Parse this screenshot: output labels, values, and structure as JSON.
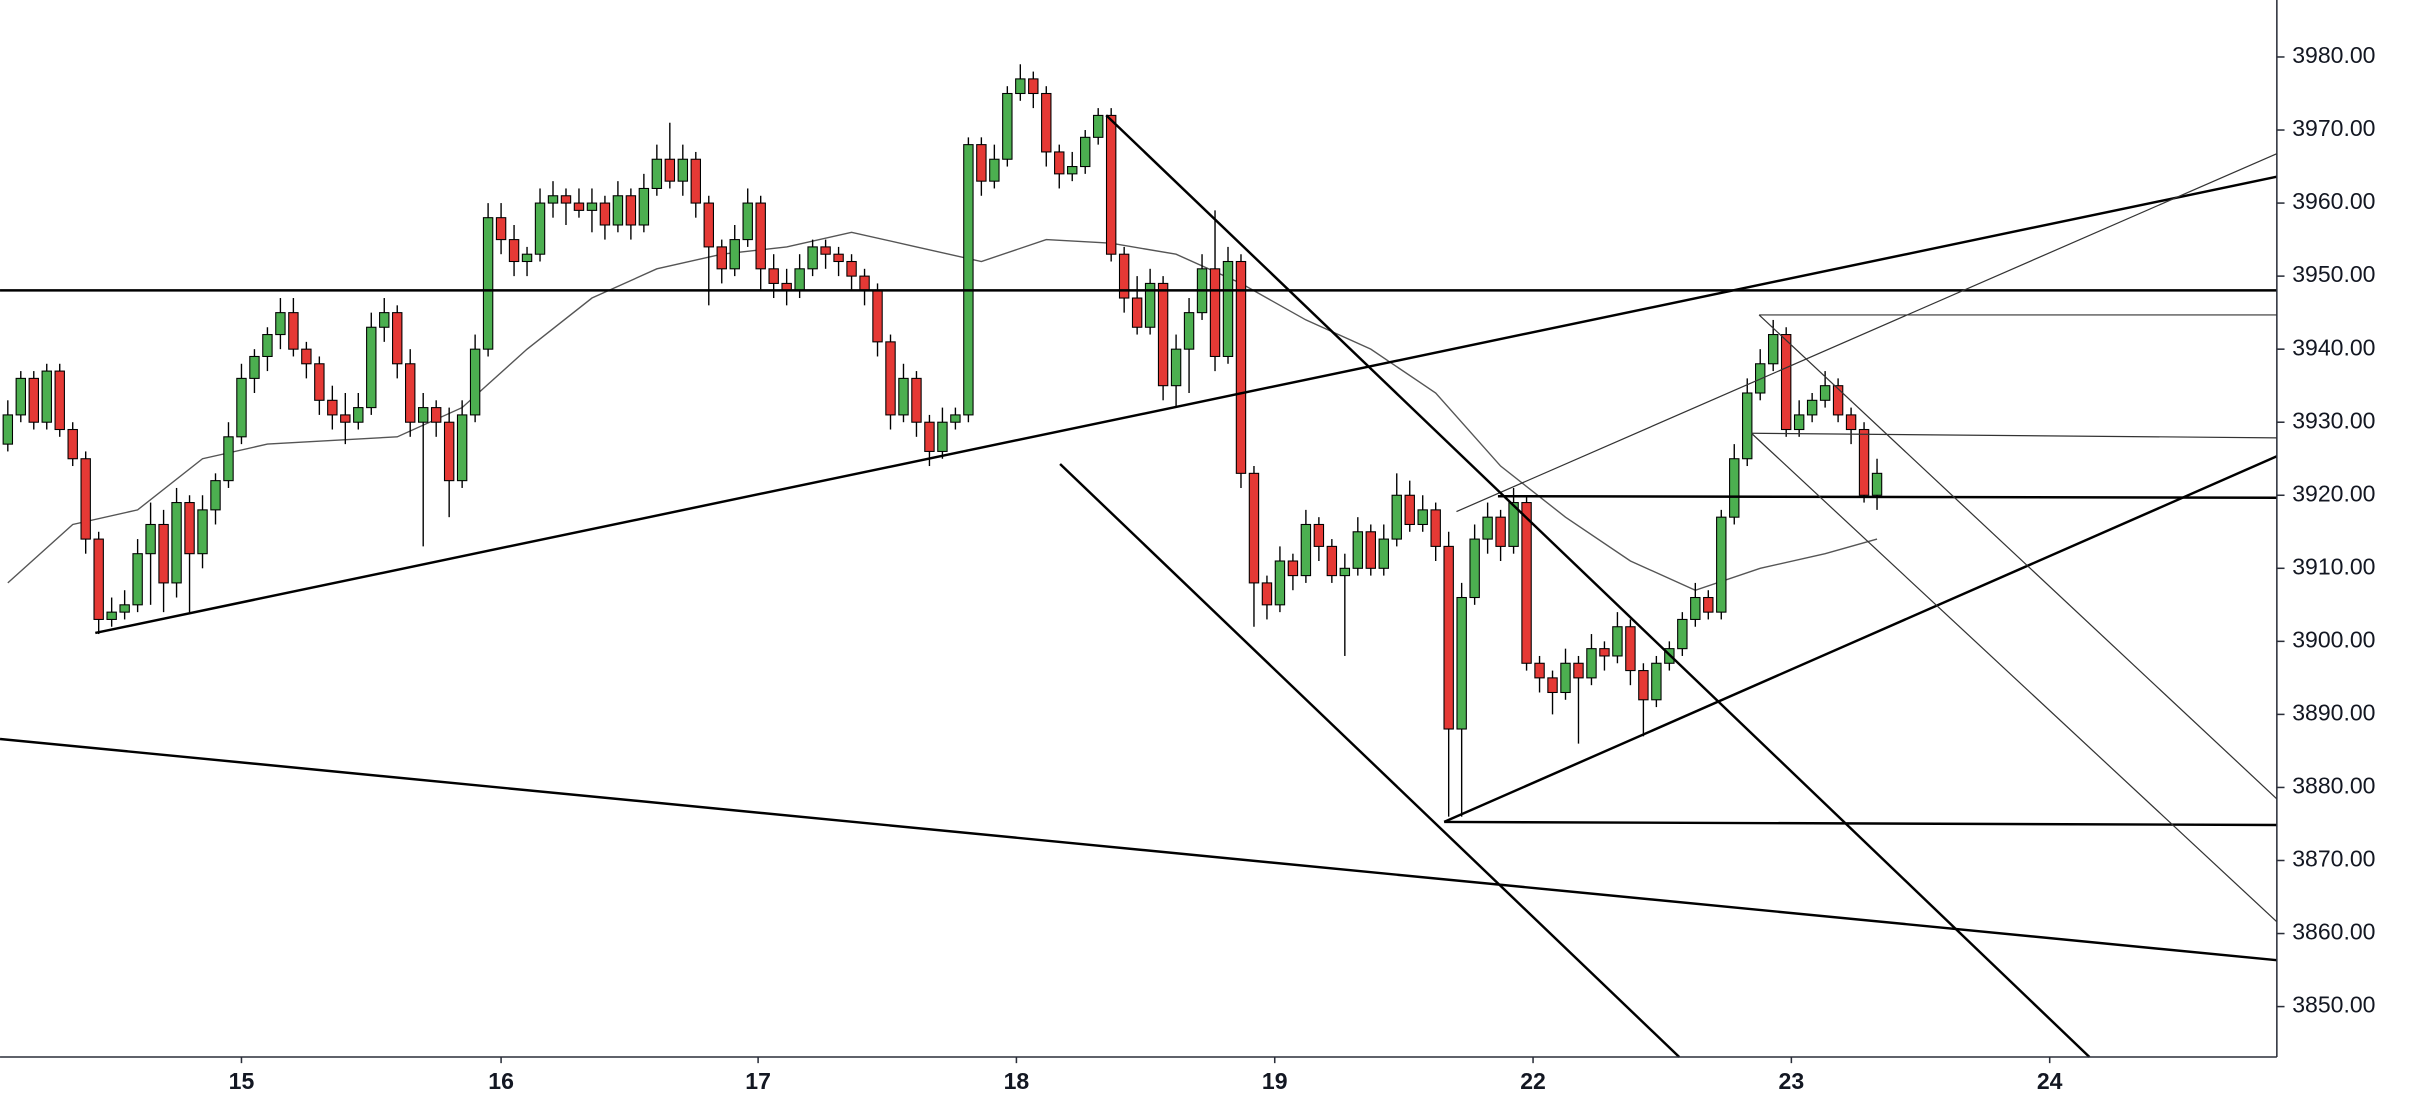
{
  "chart_data": {
    "type": "candlestick",
    "xlim": [
      -0.6,
      174.8
    ],
    "xticks": [
      {
        "value": 18,
        "label": "15"
      },
      {
        "value": 38,
        "label": "16"
      },
      {
        "value": 57.8,
        "label": "17"
      },
      {
        "value": 77.7,
        "label": "18"
      },
      {
        "value": 97.6,
        "label": "19"
      },
      {
        "value": 117.5,
        "label": "22"
      },
      {
        "value": 137.4,
        "label": "23"
      },
      {
        "value": 157.3,
        "label": "24"
      }
    ],
    "ylim": [
      3843.1,
      3987.8
    ],
    "yticks": [
      {
        "value": 3850,
        "label": "3850.00"
      },
      {
        "value": 3860,
        "label": "3860.00"
      },
      {
        "value": 3870,
        "label": "3870.00"
      },
      {
        "value": 3880,
        "label": "3880.00"
      },
      {
        "value": 3890,
        "label": "3890.00"
      },
      {
        "value": 3900,
        "label": "3900.00"
      },
      {
        "value": 3910,
        "label": "3910.00"
      },
      {
        "value": 3920,
        "label": "3920.00"
      },
      {
        "value": 3930,
        "label": "3930.00"
      },
      {
        "value": 3940,
        "label": "3940.00"
      },
      {
        "value": 3950,
        "label": "3950.00"
      },
      {
        "value": 3960,
        "label": "3960.00"
      },
      {
        "value": 3970,
        "label": "3970.00"
      },
      {
        "value": 3980,
        "label": "3980.00"
      }
    ],
    "grid": false,
    "up_color": "#4caf50",
    "down_color": "#e53935",
    "open": [
      3927,
      3931,
      3936,
      3930,
      3937,
      3929,
      3925,
      3914,
      3903,
      3904,
      3905,
      3912,
      3916,
      3908,
      3919,
      3912,
      3918,
      3922,
      3928,
      3936,
      3939,
      3942,
      3945,
      3940,
      3938,
      3933,
      3931,
      3930,
      3932,
      3943,
      3945,
      3938,
      3930,
      3932,
      3930,
      3922,
      3931,
      3940,
      3958,
      3955,
      3952,
      3953,
      3960,
      3961,
      3960,
      3959,
      3960,
      3957,
      3961,
      3957,
      3962,
      3966,
      3963,
      3966,
      3960,
      3954,
      3951,
      3955,
      3960,
      3951,
      3949,
      3948,
      3951,
      3954,
      3953,
      3952,
      3950,
      3948,
      3941,
      3931,
      3936,
      3930,
      3926,
      3930,
      3931,
      3968,
      3963,
      3966,
      3975,
      3977,
      3975,
      3967,
      3964,
      3965,
      3969,
      3972,
      3953,
      3947,
      3943,
      3949,
      3935,
      3940,
      3945,
      3951,
      3939,
      3952,
      3923,
      3908,
      3905,
      3911,
      3909,
      3916,
      3913,
      3909,
      3910,
      3915,
      3910,
      3914,
      3920,
      3916,
      3918,
      3913,
      3888,
      3906,
      3914,
      3917,
      3913,
      3919,
      3897,
      3895,
      3893,
      3897,
      3895,
      3899,
      3898,
      3902,
      3896,
      3892,
      3897,
      3899,
      3903,
      3906,
      3904,
      3917,
      3925,
      3934,
      3938,
      3942,
      3929,
      3931,
      3933,
      3935,
      3931,
      3929,
      3920
    ],
    "high": [
      3933,
      3937,
      3937,
      3938,
      3938,
      3930,
      3926,
      3915,
      3906,
      3907,
      3914,
      3919,
      3918,
      3921,
      3920,
      3920,
      3923,
      3930,
      3938,
      3940,
      3943,
      3947,
      3947,
      3941,
      3939,
      3935,
      3934,
      3934,
      3945,
      3947,
      3946,
      3940,
      3934,
      3933,
      3932,
      3933,
      3942,
      3960,
      3960,
      3957,
      3954,
      3962,
      3963,
      3962,
      3962,
      3962,
      3961,
      3963,
      3962,
      3964,
      3968,
      3971,
      3968,
      3967,
      3961,
      3955,
      3957,
      3962,
      3961,
      3953,
      3951,
      3953,
      3955,
      3955,
      3954,
      3953,
      3951,
      3949,
      3942,
      3938,
      3937,
      3931,
      3932,
      3932,
      3969,
      3969,
      3968,
      3976,
      3979,
      3978,
      3976,
      3968,
      3967,
      3970,
      3973,
      3973,
      3954,
      3950,
      3951,
      3950,
      3942,
      3947,
      3953,
      3959,
      3954,
      3953,
      3924,
      3909,
      3913,
      3912,
      3918,
      3917,
      3914,
      3912,
      3917,
      3916,
      3916,
      3923,
      3922,
      3920,
      3919,
      3915,
      3908,
      3916,
      3919,
      3918,
      3921,
      3920,
      3898,
      3896,
      3899,
      3898,
      3901,
      3900,
      3904,
      3903,
      3897,
      3898,
      3900,
      3904,
      3908,
      3907,
      3918,
      3927,
      3936,
      3940,
      3944,
      3943,
      3933,
      3934,
      3937,
      3936,
      3932,
      3930,
      3925
    ],
    "low": [
      3926,
      3930,
      3929,
      3929,
      3928,
      3924,
      3912,
      3901,
      3902,
      3903,
      3904,
      3905,
      3904,
      3906,
      3904,
      3910,
      3916,
      3921,
      3927,
      3934,
      3937,
      3940,
      3939,
      3936,
      3931,
      3929,
      3927,
      3929,
      3931,
      3941,
      3936,
      3928,
      3913,
      3928,
      3917,
      3921,
      3930,
      3939,
      3953,
      3950,
      3950,
      3952,
      3958,
      3957,
      3958,
      3956,
      3955,
      3956,
      3955,
      3956,
      3961,
      3962,
      3961,
      3958,
      3946,
      3949,
      3950,
      3954,
      3948,
      3947,
      3946,
      3947,
      3950,
      3951,
      3950,
      3948,
      3946,
      3939,
      3929,
      3930,
      3928,
      3924,
      3925,
      3929,
      3930,
      3961,
      3962,
      3965,
      3974,
      3973,
      3965,
      3962,
      3963,
      3964,
      3968,
      3952,
      3945,
      3942,
      3942,
      3933,
      3932,
      3934,
      3944,
      3937,
      3938,
      3921,
      3902,
      3903,
      3904,
      3907,
      3908,
      3911,
      3908,
      3898,
      3909,
      3909,
      3909,
      3913,
      3915,
      3915,
      3911,
      3876,
      3876,
      3905,
      3912,
      3911,
      3912,
      3896,
      3893,
      3890,
      3892,
      3886,
      3894,
      3896,
      3897,
      3894,
      3887,
      3891,
      3896,
      3898,
      3902,
      3903,
      3903,
      3916,
      3924,
      3933,
      3937,
      3928,
      3928,
      3930,
      3932,
      3930,
      3927,
      3919,
      3918
    ],
    "close": [
      3931,
      3936,
      3930,
      3937,
      3929,
      3925,
      3914,
      3903,
      3904,
      3905,
      3912,
      3916,
      3908,
      3919,
      3912,
      3918,
      3922,
      3928,
      3936,
      3939,
      3942,
      3945,
      3940,
      3938,
      3933,
      3931,
      3930,
      3932,
      3943,
      3945,
      3938,
      3930,
      3932,
      3930,
      3922,
      3931,
      3940,
      3958,
      3955,
      3952,
      3953,
      3960,
      3961,
      3960,
      3959,
      3960,
      3957,
      3961,
      3957,
      3962,
      3966,
      3963,
      3966,
      3960,
      3954,
      3951,
      3955,
      3960,
      3951,
      3949,
      3948,
      3951,
      3954,
      3953,
      3952,
      3950,
      3948,
      3941,
      3931,
      3936,
      3930,
      3926,
      3930,
      3931,
      3968,
      3963,
      3966,
      3975,
      3977,
      3975,
      3967,
      3964,
      3965,
      3969,
      3972,
      3953,
      3947,
      3943,
      3949,
      3935,
      3940,
      3945,
      3951,
      3939,
      3952,
      3923,
      3908,
      3905,
      3911,
      3909,
      3916,
      3913,
      3909,
      3910,
      3915,
      3910,
      3914,
      3920,
      3916,
      3918,
      3913,
      3888,
      3906,
      3914,
      3917,
      3913,
      3919,
      3897,
      3895,
      3893,
      3897,
      3895,
      3899,
      3898,
      3902,
      3896,
      3892,
      3897,
      3899,
      3903,
      3906,
      3904,
      3917,
      3925,
      3934,
      3938,
      3942,
      3929,
      3931,
      3933,
      3935,
      3931,
      3929,
      3920,
      3923
    ],
    "moving_average": {
      "color": "#555555",
      "x": [
        0,
        5,
        10,
        15,
        20,
        25,
        30,
        35,
        40,
        45,
        50,
        55,
        60,
        65,
        70,
        75,
        80,
        85,
        90,
        95,
        100,
        105,
        110,
        115,
        120,
        125,
        130,
        135,
        140,
        144
      ],
      "values": [
        3908,
        3916,
        3918,
        3925,
        3927,
        3927.5,
        3928,
        3932,
        3940,
        3947,
        3951,
        3953,
        3954,
        3956,
        3954,
        3952,
        3955,
        3954.5,
        3953,
        3949,
        3944,
        3940,
        3934,
        3924,
        3917,
        3911,
        3907,
        3910,
        3912,
        3914
      ]
    }
  }
}
